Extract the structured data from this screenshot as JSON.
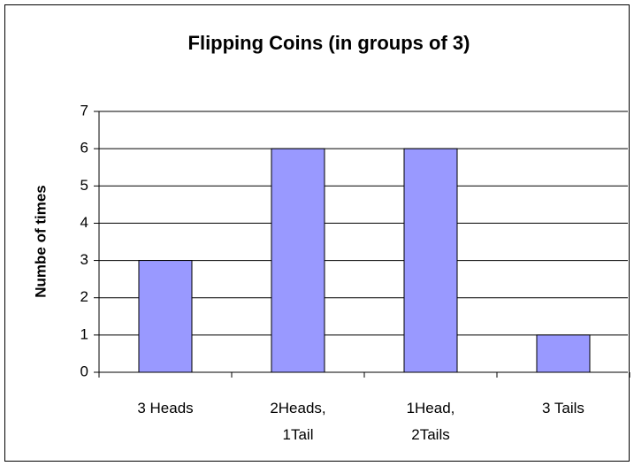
{
  "chart_data": {
    "type": "bar",
    "title": "Flipping Coins (in groups of 3)",
    "y_label": "Numbe of times",
    "categories": [
      "3 Heads",
      "2Heads,\n1Tail",
      "1Head,\n2Tails",
      "3 Tails"
    ],
    "values": [
      3,
      6,
      6,
      1
    ],
    "color": "#9999ff",
    "ylim": [
      0,
      7
    ],
    "yticks": [
      0,
      1,
      2,
      3,
      4,
      5,
      6,
      7
    ],
    "grid": true
  }
}
